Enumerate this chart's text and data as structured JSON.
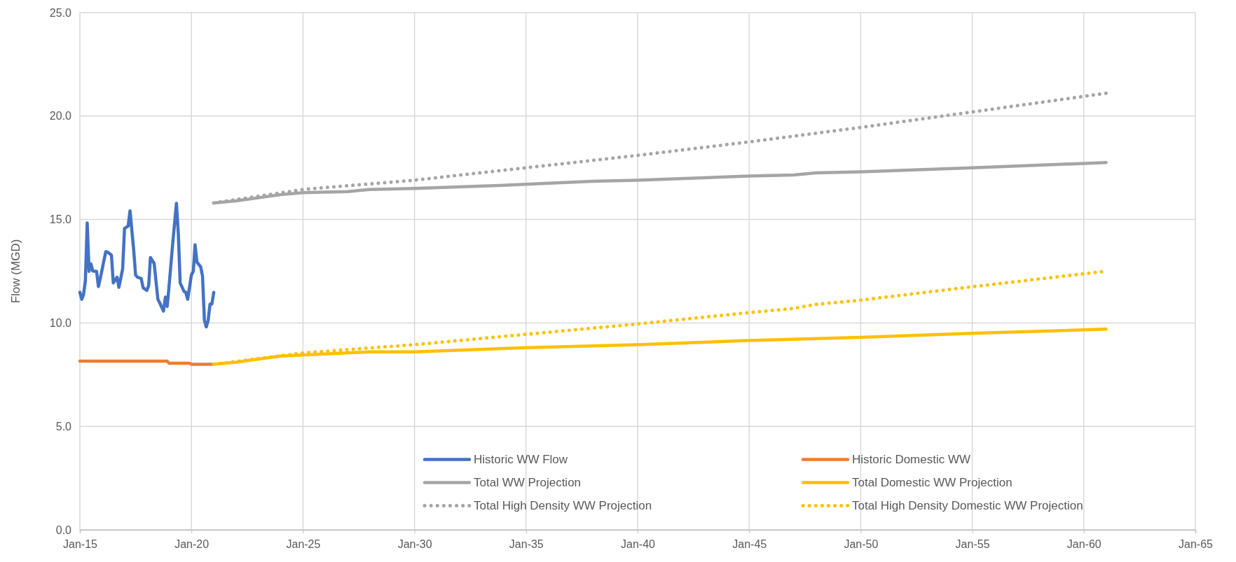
{
  "chart_data": {
    "type": "line",
    "ylabel": "Flow (MGD)",
    "xlim": [
      "2015-01",
      "2065-01"
    ],
    "ylim": [
      0,
      25
    ],
    "xticks": [
      {
        "value": "2015-01",
        "label": "Jan-15"
      },
      {
        "value": "2020-01",
        "label": "Jan-20"
      },
      {
        "value": "2025-01",
        "label": "Jan-25"
      },
      {
        "value": "2030-01",
        "label": "Jan-30"
      },
      {
        "value": "2035-01",
        "label": "Jan-35"
      },
      {
        "value": "2040-01",
        "label": "Jan-40"
      },
      {
        "value": "2045-01",
        "label": "Jan-45"
      },
      {
        "value": "2050-01",
        "label": "Jan-50"
      },
      {
        "value": "2055-01",
        "label": "Jan-55"
      },
      {
        "value": "2060-01",
        "label": "Jan-60"
      },
      {
        "value": "2065-01",
        "label": "Jan-65"
      }
    ],
    "yticks": [
      {
        "value": 0,
        "label": "0.0"
      },
      {
        "value": 5,
        "label": "5.0"
      },
      {
        "value": 10,
        "label": "10.0"
      },
      {
        "value": 15,
        "label": "15.0"
      },
      {
        "value": 20,
        "label": "20.0"
      },
      {
        "value": 25,
        "label": "25.0"
      }
    ],
    "grid": true,
    "legend": "bottom right",
    "marker": "none",
    "series": [
      {
        "name": "Historic WW Flow",
        "color": "#4472c4",
        "line_style": "solid",
        "x": [
          "2015-01",
          "2015-02",
          "2015-03",
          "2015-04",
          "2015-05",
          "2015-06",
          "2015-07",
          "2015-08",
          "2015-10",
          "2015-11",
          "2015-12",
          "2016-02",
          "2016-03",
          "2016-04",
          "2016-06",
          "2016-07",
          "2016-09",
          "2016-10",
          "2016-12",
          "2017-01",
          "2017-03",
          "2017-04",
          "2017-06",
          "2017-07",
          "2017-08",
          "2017-10",
          "2017-11",
          "2018-01",
          "2018-02",
          "2018-03",
          "2018-05",
          "2018-07",
          "2018-08",
          "2018-10",
          "2018-11",
          "2018-12",
          "2019-01",
          "2019-03",
          "2019-05",
          "2019-06",
          "2019-07",
          "2019-09",
          "2019-10",
          "2019-11",
          "2020-01",
          "2020-02",
          "2020-03",
          "2020-04",
          "2020-06",
          "2020-07",
          "2020-08",
          "2020-09",
          "2020-10",
          "2020-11",
          "2020-12",
          "2021-01"
        ],
        "values": [
          11.48,
          11.14,
          11.36,
          12.04,
          14.83,
          12.49,
          12.85,
          12.51,
          12.49,
          11.76,
          12.15,
          13.05,
          13.45,
          13.42,
          13.28,
          11.93,
          12.21,
          11.72,
          12.6,
          14.57,
          14.68,
          15.42,
          13.5,
          12.32,
          12.21,
          12.15,
          11.7,
          11.57,
          11.81,
          13.16,
          12.88,
          11.14,
          10.97,
          10.57,
          11.25,
          10.8,
          11.81,
          13.84,
          15.78,
          14.29,
          11.93,
          11.53,
          11.48,
          11.14,
          12.32,
          12.49,
          13.78,
          12.94,
          12.71,
          12.26,
          10.12,
          9.81,
          10.12,
          10.91,
          10.91,
          11.48
        ]
      },
      {
        "name": "Historic Domestic WW",
        "color": "#ed7d31",
        "line_style": "solid",
        "x": [
          "2015-01",
          "2018-12",
          "2019-01",
          "2019-12",
          "2020-01",
          "2020-12"
        ],
        "values": [
          8.15,
          8.15,
          8.05,
          8.05,
          8.0,
          8.0
        ]
      },
      {
        "name": "Total WW Projection",
        "color": "#a5a5a5",
        "line_style": "solid",
        "x": [
          "2021-01",
          "2022-01",
          "2024-01",
          "2025-01",
          "2027-01",
          "2028-01",
          "2030-01",
          "2034-01",
          "2035-01",
          "2038-01",
          "2040-01",
          "2045-01",
          "2047-01",
          "2048-01",
          "2050-01",
          "2055-01",
          "2061-01"
        ],
        "values": [
          15.8,
          15.9,
          16.2,
          16.3,
          16.35,
          16.45,
          16.5,
          16.65,
          16.7,
          16.85,
          16.9,
          17.1,
          17.15,
          17.25,
          17.3,
          17.5,
          17.75
        ]
      },
      {
        "name": "Total Domestic WW Projection",
        "color": "#ffc000",
        "line_style": "solid",
        "x": [
          "2021-01",
          "2022-01",
          "2024-01",
          "2025-01",
          "2028-01",
          "2030-01",
          "2035-01",
          "2040-01",
          "2045-01",
          "2050-01",
          "2055-01",
          "2061-01"
        ],
        "values": [
          8.0,
          8.1,
          8.4,
          8.45,
          8.6,
          8.6,
          8.8,
          8.95,
          9.15,
          9.3,
          9.5,
          9.7
        ]
      },
      {
        "name": "Total High Density WW Projection",
        "color": "#a5a5a5",
        "line_style": "dotted",
        "x": [
          "2021-01",
          "2025-01",
          "2030-01",
          "2035-01",
          "2040-01",
          "2045-01",
          "2050-01",
          "2055-01",
          "2061-01"
        ],
        "values": [
          15.8,
          16.45,
          16.9,
          17.5,
          18.1,
          18.75,
          19.45,
          20.2,
          21.1
        ]
      },
      {
        "name": "Total High Density Domestic WW Projection",
        "color": "#ffc000",
        "line_style": "dotted",
        "x": [
          "2021-01",
          "2025-01",
          "2030-01",
          "2035-01",
          "2040-01",
          "2045-01",
          "2047-01",
          "2048-01",
          "2050-01",
          "2055-01",
          "2061-01"
        ],
        "values": [
          8.0,
          8.55,
          8.95,
          9.45,
          9.95,
          10.5,
          10.7,
          10.9,
          11.1,
          11.75,
          12.5
        ]
      }
    ]
  }
}
